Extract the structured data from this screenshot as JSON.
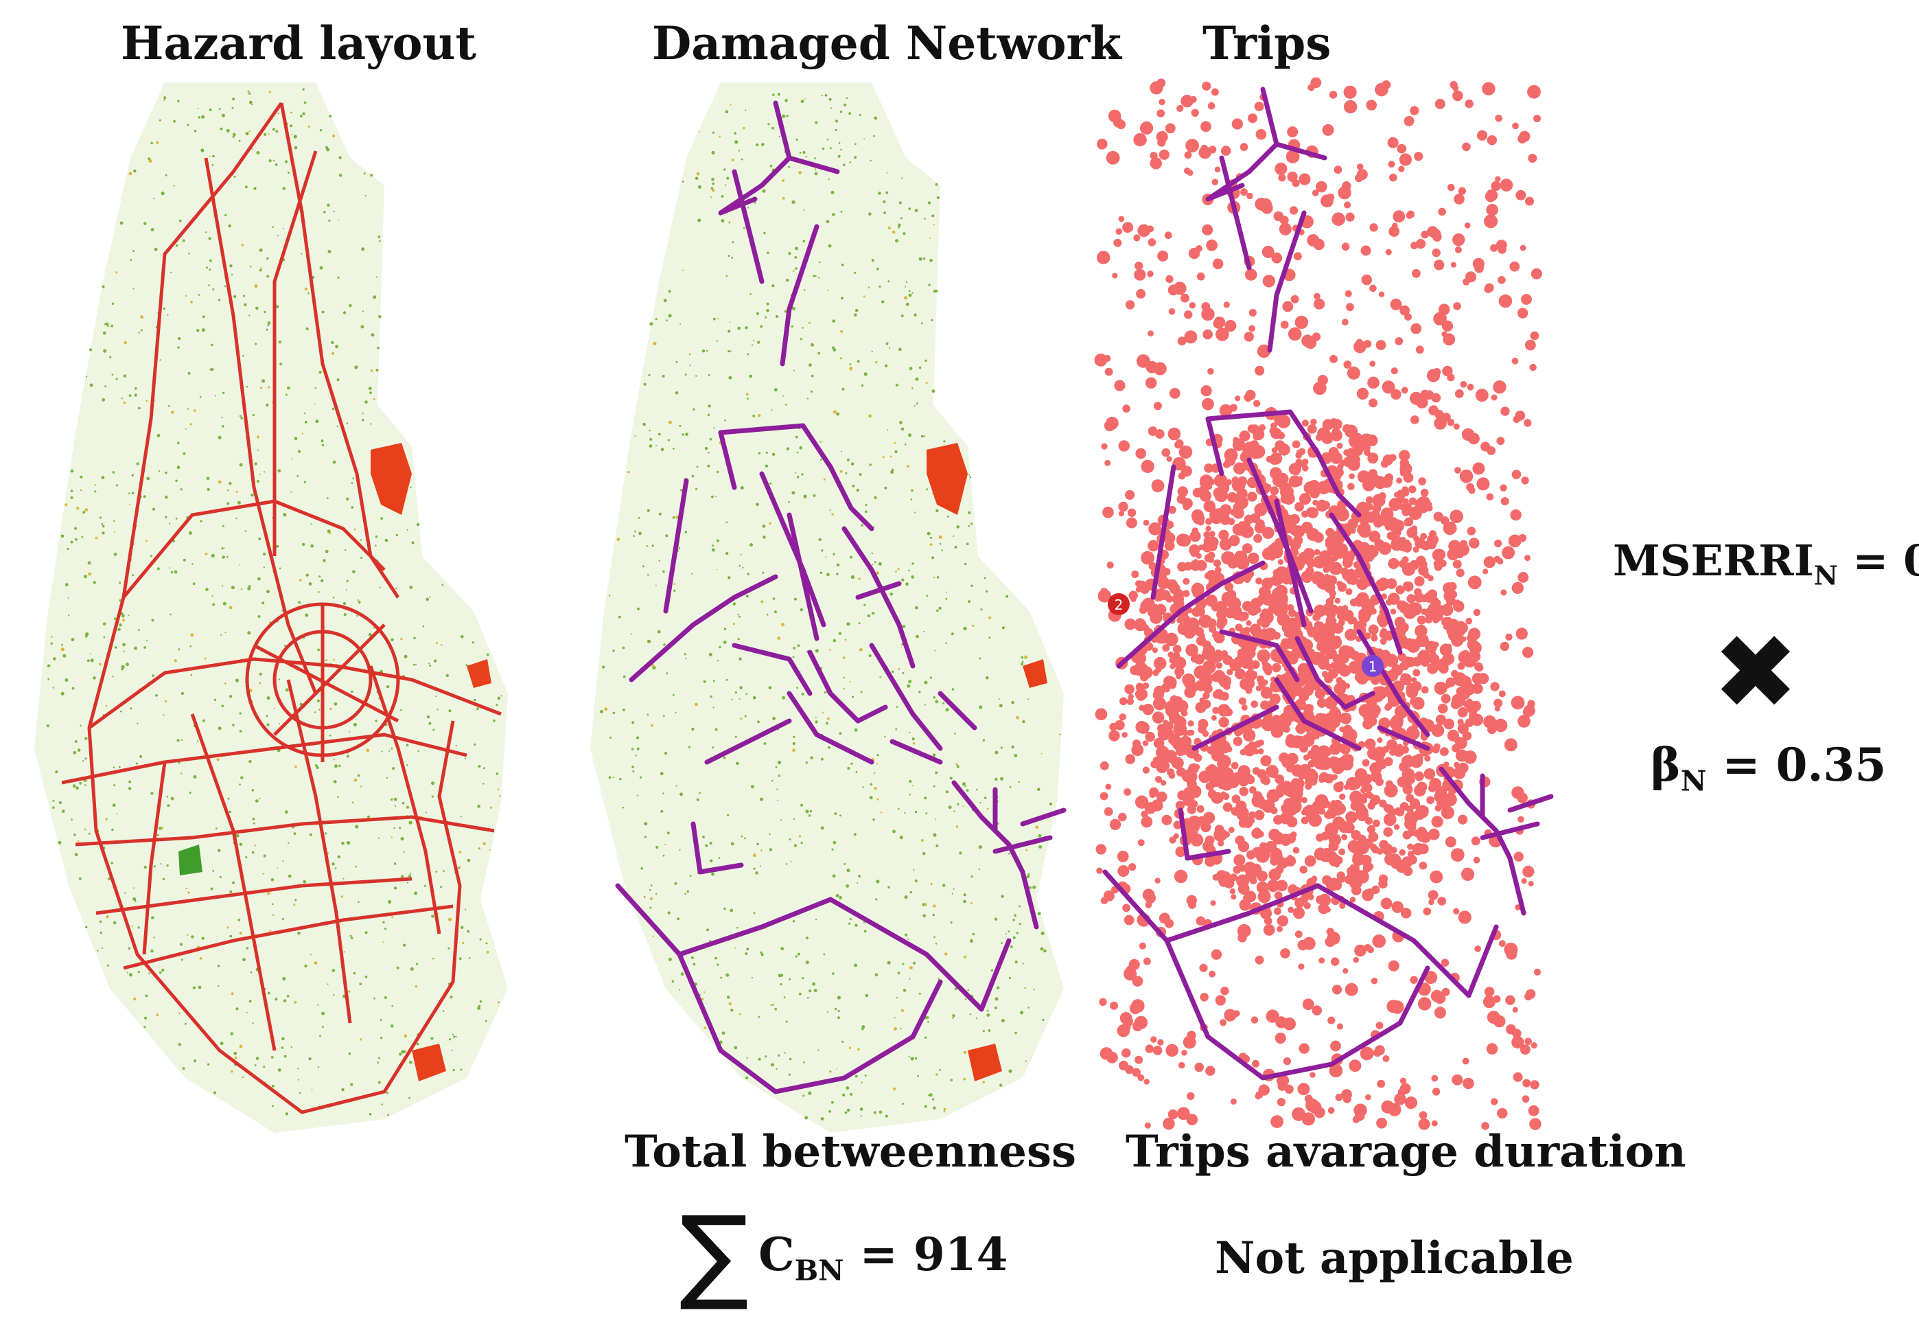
{
  "panels": [
    {
      "title": "Hazard layout"
    },
    {
      "title": "Damaged Network"
    },
    {
      "title": "Trips"
    }
  ],
  "betweenness": {
    "caption": "Total betweenness",
    "symbol": "∑",
    "var": "C",
    "sub": "BN",
    "eq": " = 914"
  },
  "trips_duration": {
    "caption": "Trips avarage duration",
    "value": "Not applicable"
  },
  "mserri": {
    "var": "MSERRI",
    "sub": "N",
    "eq": " = 0"
  },
  "operator": "✖",
  "beta": {
    "var": "β",
    "sub": "N",
    "eq": " = 0.35"
  },
  "node_labels": [
    "2",
    "1"
  ],
  "colors": {
    "hazard_road": "#d8322a",
    "damaged_road": "#8e1e9c",
    "trip_points": "#f36a6a",
    "vegetation": "#7ab540",
    "hazard_zone": "#e8401a"
  }
}
